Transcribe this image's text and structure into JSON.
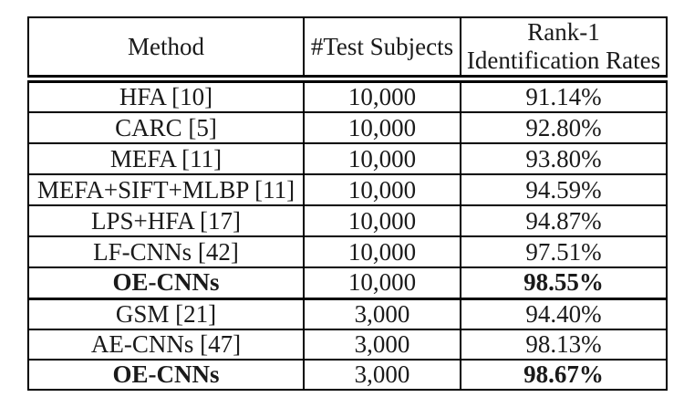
{
  "colors": {
    "border": "#000000",
    "text": "#1a1a1a",
    "background": "#ffffff"
  },
  "table": {
    "headers": {
      "method": "Method",
      "subjects": "#Test Subjects",
      "rate_line1": "Rank-1",
      "rate_line2": "Identification Rates"
    },
    "sections": [
      {
        "rows": [
          {
            "method": "HFA [10]",
            "subjects": "10,000",
            "rate": "91.14%",
            "bold": false
          },
          {
            "method": "CARC [5]",
            "subjects": "10,000",
            "rate": "92.80%",
            "bold": false
          },
          {
            "method": "MEFA [11]",
            "subjects": "10,000",
            "rate": "93.80%",
            "bold": false
          },
          {
            "method": "MEFA+SIFT+MLBP [11]",
            "subjects": "10,000",
            "rate": "94.59%",
            "bold": false
          },
          {
            "method": "LPS+HFA [17]",
            "subjects": "10,000",
            "rate": "94.87%",
            "bold": false
          },
          {
            "method": "LF-CNNs [42]",
            "subjects": "10,000",
            "rate": "97.51%",
            "bold": false
          },
          {
            "method": "OE-CNNs",
            "subjects": "10,000",
            "rate": "98.55%",
            "bold": true
          }
        ]
      },
      {
        "rows": [
          {
            "method": "GSM [21]",
            "subjects": "3,000",
            "rate": "94.40%",
            "bold": false
          },
          {
            "method": "AE-CNNs [47]",
            "subjects": "3,000",
            "rate": "98.13%",
            "bold": false
          },
          {
            "method": "OE-CNNs",
            "subjects": "3,000",
            "rate": "98.67%",
            "bold": true
          }
        ]
      }
    ]
  }
}
